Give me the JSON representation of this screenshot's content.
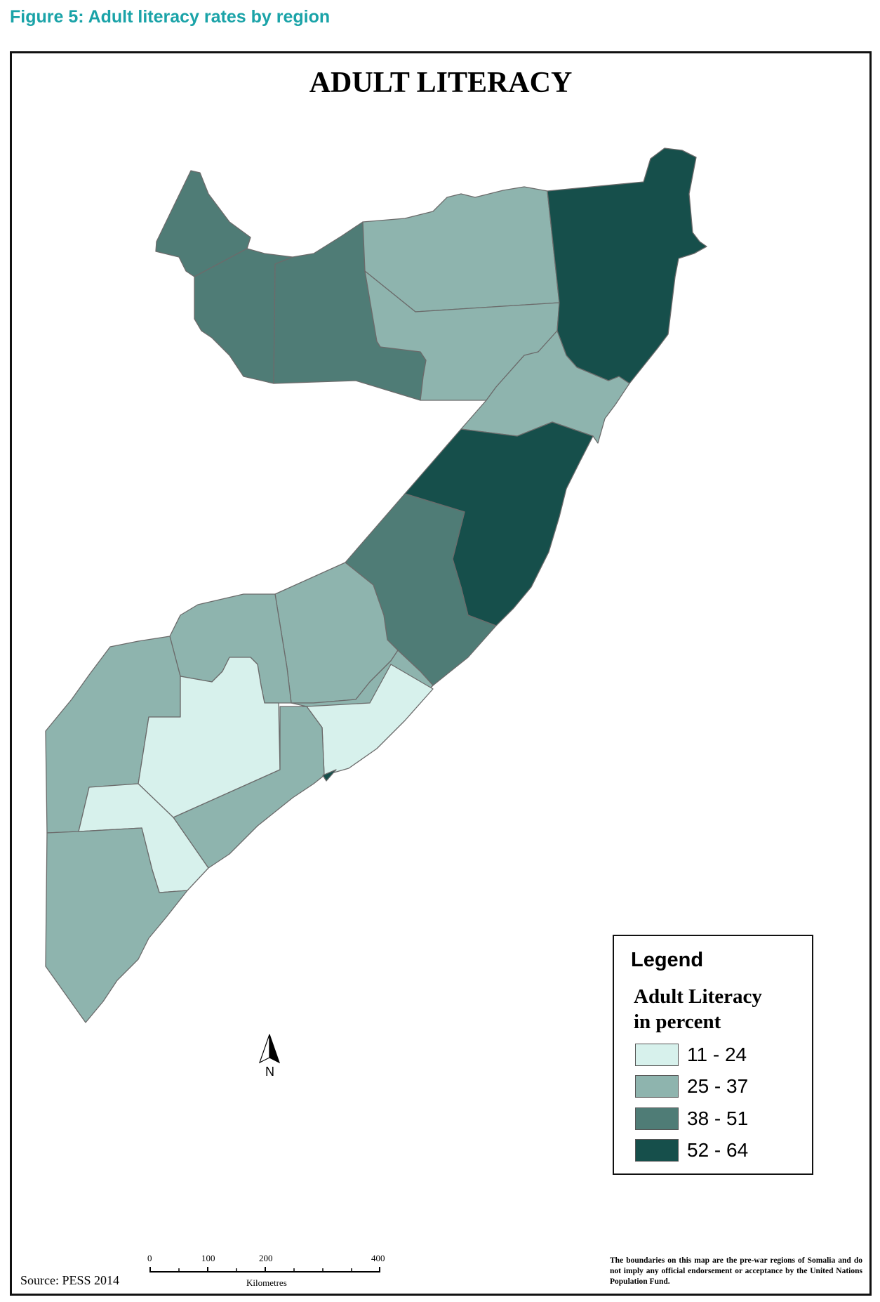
{
  "figure_caption": "Figure 5: Adult literacy rates by region",
  "map": {
    "title": "ADULT LITERACY",
    "legend": {
      "title": "Legend",
      "subtitle_line1": "Adult Literacy",
      "subtitle_line2": "in percent",
      "classes": [
        {
          "label": "11 - 24",
          "color": "#d7f1ec"
        },
        {
          "label": "25 - 37",
          "color": "#8eb4ae"
        },
        {
          "label": "38 - 51",
          "color": "#4f7c76"
        },
        {
          "label": "52 - 64",
          "color": "#164f4b"
        }
      ]
    },
    "north_arrow_label": "N",
    "scale_bar": {
      "ticks": [
        "0",
        "100",
        "200",
        "400"
      ],
      "unit": "Kilometres"
    },
    "source": "Source: PESS 2014",
    "disclaimer": "The boundaries on this map are the pre-war regions of Somalia and do not imply any official endorsement or acceptance by the United Nations Population Fund."
  }
}
